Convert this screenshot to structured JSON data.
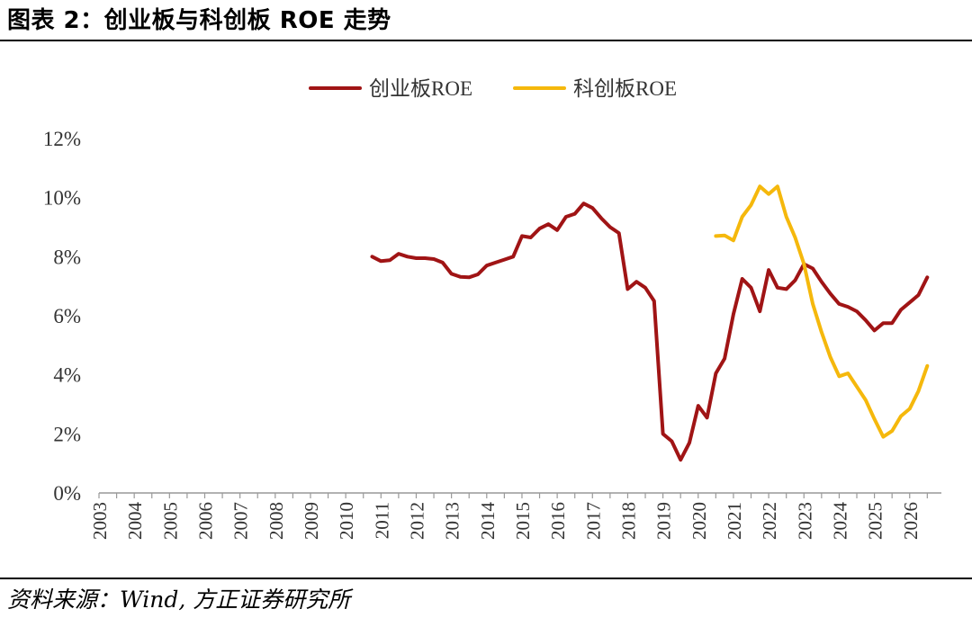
{
  "header": {
    "title": "图表 2：创业板与科创板 ROE 走势"
  },
  "footer": {
    "source": "资料来源：Wind, 方正证券研究所"
  },
  "chart_data": {
    "type": "line",
    "title": "",
    "xlabel": "",
    "ylabel": "",
    "ylim": [
      0,
      12
    ],
    "y_ticks": [
      "0%",
      "2%",
      "4%",
      "6%",
      "8%",
      "10%",
      "12%"
    ],
    "y_tick_values": [
      0,
      2,
      4,
      6,
      8,
      10,
      12
    ],
    "x_range": [
      2003,
      2026.9
    ],
    "x_ticks": [
      "2003",
      "2004",
      "2005",
      "2006",
      "2007",
      "2008",
      "2009",
      "2010",
      "2011",
      "2012",
      "2013",
      "2014",
      "2015",
      "2016",
      "2017",
      "2018",
      "2019",
      "2020",
      "2021",
      "2022",
      "2023",
      "2024",
      "2025",
      "2026"
    ],
    "legend_position": "top-center",
    "grid": false,
    "series": [
      {
        "name": "创业板ROE",
        "color": "#a01415",
        "x": [
          2010.75,
          2011.0,
          2011.25,
          2011.5,
          2011.75,
          2012.0,
          2012.25,
          2012.5,
          2012.75,
          2013.0,
          2013.25,
          2013.5,
          2013.75,
          2014.0,
          2014.25,
          2014.5,
          2014.75,
          2015.0,
          2015.25,
          2015.5,
          2015.75,
          2016.0,
          2016.25,
          2016.5,
          2016.75,
          2017.0,
          2017.25,
          2017.5,
          2017.75,
          2018.0,
          2018.25,
          2018.5,
          2018.75,
          2019.0,
          2019.25,
          2019.5,
          2019.75,
          2020.0,
          2020.25,
          2020.5,
          2020.75,
          2021.0,
          2021.25,
          2021.5,
          2021.75,
          2022.0,
          2022.25,
          2022.5,
          2022.75,
          2023.0,
          2023.25,
          2023.5,
          2023.75,
          2024.0,
          2024.25,
          2024.5,
          2024.75,
          2025.0,
          2025.25,
          2025.5,
          2025.75,
          2026.0,
          2026.25,
          2026.5
        ],
        "values": [
          8.0,
          7.85,
          7.88,
          8.1,
          8.0,
          7.95,
          7.95,
          7.92,
          7.8,
          7.42,
          7.32,
          7.3,
          7.4,
          7.7,
          7.8,
          7.9,
          8.0,
          8.7,
          8.65,
          8.95,
          9.1,
          8.9,
          9.35,
          9.45,
          9.8,
          9.65,
          9.3,
          9.0,
          8.8,
          6.9,
          7.15,
          6.95,
          6.5,
          2.0,
          1.75,
          1.12,
          1.7,
          2.95,
          2.55,
          4.05,
          4.55,
          6.05,
          7.25,
          6.95,
          6.15,
          7.55,
          6.95,
          6.9,
          7.2,
          7.75,
          7.6,
          7.15,
          6.75,
          6.4,
          6.3,
          6.15,
          5.85,
          5.5,
          5.75,
          5.75,
          6.2,
          6.45,
          6.7,
          7.3
        ]
      },
      {
        "name": "科创板ROE",
        "color": "#f5b80c",
        "x": [
          2020.5,
          2020.75,
          2021.0,
          2021.25,
          2021.5,
          2021.75,
          2022.0,
          2022.25,
          2022.5,
          2022.75,
          2023.0,
          2023.25,
          2023.5,
          2023.75,
          2024.0,
          2024.25,
          2024.5,
          2024.75,
          2025.0,
          2025.25,
          2025.5,
          2025.75,
          2026.0,
          2026.25,
          2026.5
        ],
        "values": [
          8.7,
          8.72,
          8.55,
          9.35,
          9.75,
          10.38,
          10.12,
          10.38,
          9.35,
          8.65,
          7.75,
          6.4,
          5.45,
          4.6,
          3.95,
          4.05,
          3.6,
          3.15,
          2.5,
          1.9,
          2.1,
          2.6,
          2.85,
          3.45,
          4.3
        ]
      }
    ]
  }
}
